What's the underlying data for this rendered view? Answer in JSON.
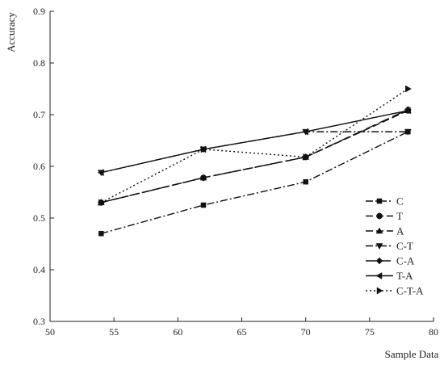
{
  "chart_data": {
    "type": "line",
    "title": "",
    "xlabel": "Sample Data",
    "ylabel": "Accuracy",
    "xlim": [
      50,
      80
    ],
    "ylim": [
      0.3,
      0.9
    ],
    "xticks": [
      "50",
      "55",
      "60",
      "65",
      "70",
      "75",
      "80"
    ],
    "yticks": [
      "0.3",
      "0.4",
      "0.5",
      "0.6",
      "0.7",
      "0.8",
      "0.9"
    ],
    "x": [
      54,
      62,
      70,
      78
    ],
    "grid": false,
    "legend_position": "lower-right",
    "series": [
      {
        "name": "C",
        "values": [
          0.47,
          0.525,
          0.57,
          0.667
        ],
        "marker": "square",
        "dash": "dashdot"
      },
      {
        "name": "T",
        "values": [
          0.53,
          0.578,
          0.618,
          0.708
        ],
        "marker": "circle",
        "dash": "dash"
      },
      {
        "name": "A",
        "values": [
          0.53,
          0.578,
          0.618,
          0.708
        ],
        "marker": "triangle-up",
        "dash": "dash"
      },
      {
        "name": "C-T",
        "values": [
          0.588,
          0.633,
          0.667,
          0.667
        ],
        "marker": "triangle-down",
        "dash": "dashdot"
      },
      {
        "name": "C-A",
        "values": [
          0.53,
          0.578,
          0.618,
          0.71
        ],
        "marker": "diamond",
        "dash": "longdash"
      },
      {
        "name": "T-A",
        "values": [
          0.588,
          0.633,
          0.667,
          0.708
        ],
        "marker": "triangle-left",
        "dash": "solid"
      },
      {
        "name": "C-T-A",
        "values": [
          0.53,
          0.633,
          0.618,
          0.75
        ],
        "marker": "triangle-right",
        "dash": "dot"
      }
    ]
  }
}
